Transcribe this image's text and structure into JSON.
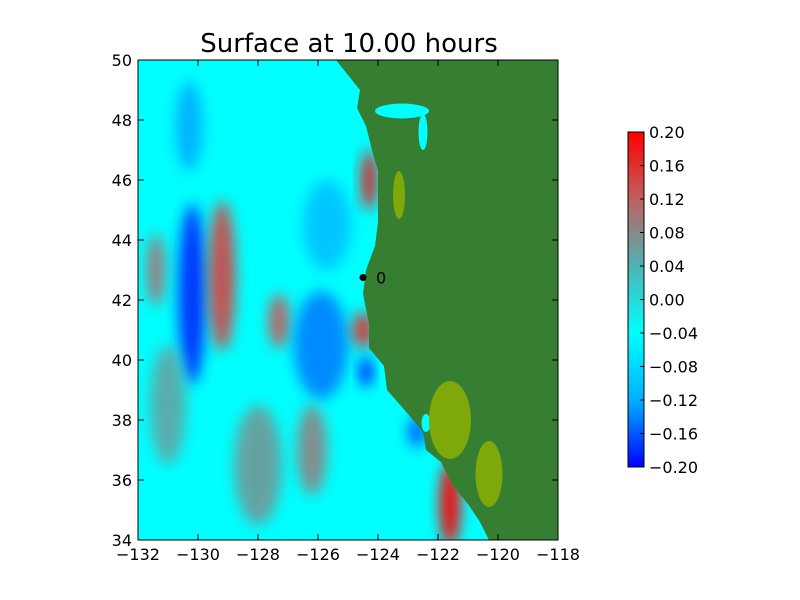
{
  "chart_data": {
    "type": "heatmap",
    "title": "Surface at 10.00 hours",
    "xlabel": "",
    "ylabel": "",
    "xlim": [
      -132,
      -118
    ],
    "ylim": [
      34,
      50
    ],
    "x_ticks": [
      -132,
      -130,
      -128,
      -126,
      -124,
      -122,
      -120,
      -118
    ],
    "y_ticks": [
      34,
      36,
      38,
      40,
      42,
      44,
      46,
      48,
      50
    ],
    "x_tick_labels": [
      "−132",
      "−130",
      "−128",
      "−126",
      "−124",
      "−122",
      "−120",
      "−118"
    ],
    "y_tick_labels": [
      "34",
      "36",
      "38",
      "40",
      "42",
      "44",
      "46",
      "48",
      "50"
    ],
    "grid": false,
    "colorbar": {
      "range": [
        -0.2,
        0.2
      ],
      "ticks": [
        0.2,
        0.16,
        0.12,
        0.08,
        0.04,
        0.0,
        -0.04,
        -0.08,
        -0.12,
        -0.16,
        -0.2
      ],
      "tick_labels": [
        "0.20",
        "0.16",
        "0.12",
        "0.08",
        "0.04",
        "0.00",
        "−0.04",
        "−0.08",
        "−0.12",
        "−0.16",
        "−0.20"
      ],
      "colors": [
        "#0000ff",
        "#00b0ff",
        "#00ffff",
        "#4fb3b3",
        "#c06060",
        "#ff0000"
      ]
    },
    "land_color": "#367e31",
    "land_dry_color": "#7fa80a",
    "gauge": {
      "lon": -124.5,
      "lat": 42.75,
      "label": "0"
    },
    "coastline": [
      [
        -125.4,
        50.0
      ],
      [
        -124.6,
        49.0
      ],
      [
        -124.7,
        48.4
      ],
      [
        -124.4,
        47.8
      ],
      [
        -124.2,
        47.0
      ],
      [
        -124.0,
        46.3
      ],
      [
        -124.0,
        45.5
      ],
      [
        -124.0,
        44.6
      ],
      [
        -124.1,
        43.8
      ],
      [
        -124.4,
        43.0
      ],
      [
        -124.5,
        42.2
      ],
      [
        -124.3,
        41.2
      ],
      [
        -124.3,
        40.4
      ],
      [
        -123.8,
        39.8
      ],
      [
        -123.7,
        39.0
      ],
      [
        -123.0,
        38.2
      ],
      [
        -122.5,
        37.6
      ],
      [
        -122.4,
        37.0
      ],
      [
        -121.9,
        36.6
      ],
      [
        -121.5,
        35.8
      ],
      [
        -121.0,
        35.2
      ],
      [
        -120.6,
        34.6
      ],
      [
        -120.3,
        34.0
      ]
    ],
    "anomalies": [
      {
        "lon": -130.2,
        "lat": 42.2,
        "value": -0.18,
        "rlon": 0.45,
        "rlat": 3.0
      },
      {
        "lon": -130.3,
        "lat": 47.8,
        "value": -0.12,
        "rlon": 0.45,
        "rlat": 1.5
      },
      {
        "lon": -129.2,
        "lat": 42.8,
        "value": 0.14,
        "rlon": 0.45,
        "rlat": 2.5
      },
      {
        "lon": -127.3,
        "lat": 41.3,
        "value": 0.12,
        "rlon": 0.35,
        "rlat": 0.9
      },
      {
        "lon": -125.9,
        "lat": 40.5,
        "value": -0.14,
        "rlon": 0.9,
        "rlat": 1.8
      },
      {
        "lon": -125.7,
        "lat": 44.5,
        "value": -0.1,
        "rlon": 0.8,
        "rlat": 1.5
      },
      {
        "lon": -124.3,
        "lat": 46.0,
        "value": 0.18,
        "rlon": 0.25,
        "rlat": 1.0
      },
      {
        "lon": -124.5,
        "lat": 41.0,
        "value": 0.16,
        "rlon": 0.35,
        "rlat": 0.6
      },
      {
        "lon": -124.4,
        "lat": 39.6,
        "value": -0.2,
        "rlon": 0.2,
        "rlat": 0.5
      },
      {
        "lon": -121.6,
        "lat": 35.2,
        "value": 0.2,
        "rlon": 0.35,
        "rlat": 1.4
      },
      {
        "lon": -122.7,
        "lat": 37.6,
        "value": -0.16,
        "rlon": 0.3,
        "rlat": 0.5
      },
      {
        "lon": -131.0,
        "lat": 38.5,
        "value": 0.05,
        "rlon": 0.6,
        "rlat": 2.0
      },
      {
        "lon": -128.0,
        "lat": 36.5,
        "value": 0.06,
        "rlon": 0.8,
        "rlat": 2.0
      },
      {
        "lon": -126.2,
        "lat": 37.0,
        "value": 0.08,
        "rlon": 0.5,
        "rlat": 1.5
      },
      {
        "lon": -131.4,
        "lat": 43.0,
        "value": 0.1,
        "rlon": 0.3,
        "rlat": 1.2
      }
    ]
  }
}
